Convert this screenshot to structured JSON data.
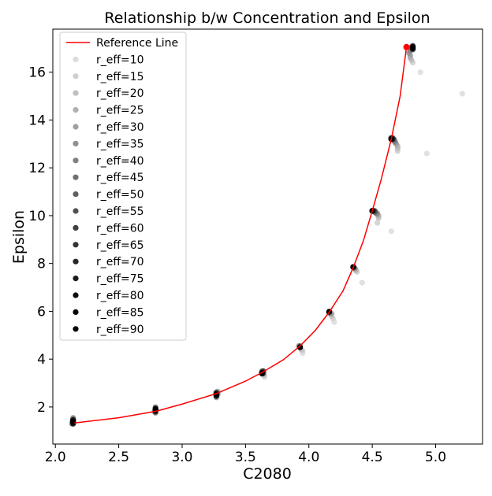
{
  "chart_data": {
    "type": "scatter",
    "title": "Relationship b/w Concentration and Epsilon",
    "xlabel": "C2080",
    "ylabel": "Epsilon",
    "xlim": [
      1.98,
      5.37
    ],
    "ylim": [
      0.45,
      17.8
    ],
    "xticks": [
      "2.0",
      "2.5",
      "3.0",
      "3.5",
      "4.0",
      "4.5",
      "5.0"
    ],
    "yticks": [
      "2",
      "4",
      "6",
      "8",
      "10",
      "12",
      "14",
      "16"
    ],
    "reference_line": {
      "name": "Reference Line",
      "color": "#ff0000",
      "x": [
        2.15,
        2.5,
        2.8,
        3.0,
        3.27,
        3.5,
        3.64,
        3.8,
        3.93,
        4.05,
        4.16,
        4.27,
        4.35,
        4.43,
        4.5,
        4.57,
        4.65,
        4.72,
        4.77
      ],
      "y": [
        1.33,
        1.55,
        1.83,
        2.12,
        2.56,
        3.08,
        3.47,
        3.98,
        4.55,
        5.2,
        5.96,
        6.86,
        7.83,
        8.95,
        10.2,
        11.5,
        13.2,
        15.0,
        17.05
      ]
    },
    "marker_point": {
      "x": 4.77,
      "y": 17.05,
      "color": "#ff0000"
    },
    "legend": {
      "position": "upper-left"
    },
    "series": [
      {
        "name": "r_eff=10",
        "color": "#dcdcdc",
        "x": [
          2.14,
          2.79,
          3.28,
          3.65,
          3.95,
          4.2,
          4.42,
          4.65,
          4.93,
          5.21,
          4.88
        ],
        "y": [
          1.45,
          1.85,
          2.45,
          3.25,
          4.25,
          5.55,
          7.2,
          9.35,
          12.6,
          15.1,
          16.0
        ]
      },
      {
        "name": "r_eff=15",
        "color": "#cfcfcf",
        "x": [
          2.14,
          2.79,
          3.28,
          3.65,
          3.95,
          4.19,
          4.38,
          4.54,
          4.7,
          4.82
        ],
        "y": [
          1.5,
          1.9,
          2.5,
          3.3,
          4.35,
          5.7,
          7.65,
          9.7,
          12.7,
          16.4
        ]
      },
      {
        "name": "r_eff=20",
        "color": "#c0c0c0",
        "x": [
          2.13,
          2.79,
          3.27,
          3.64,
          3.94,
          4.18,
          4.37,
          4.55,
          4.7,
          4.81
        ],
        "y": [
          1.4,
          1.95,
          2.6,
          3.35,
          4.4,
          5.8,
          7.7,
          9.9,
          12.8,
          16.5
        ]
      },
      {
        "name": "r_eff=25",
        "color": "#b0b0b0",
        "x": [
          2.14,
          2.78,
          3.27,
          3.64,
          3.93,
          4.18,
          4.37,
          4.55,
          4.7,
          4.8
        ],
        "y": [
          1.35,
          1.8,
          2.55,
          3.4,
          4.5,
          5.9,
          7.75,
          10.0,
          12.9,
          16.6
        ]
      },
      {
        "name": "r_eff=30",
        "color": "#a0a0a0",
        "x": [
          2.14,
          2.79,
          3.28,
          3.64,
          3.92,
          4.17,
          4.36,
          4.54,
          4.69,
          4.8
        ],
        "y": [
          1.55,
          2.0,
          2.65,
          3.5,
          4.55,
          5.95,
          7.8,
          10.05,
          13.0,
          16.7
        ]
      },
      {
        "name": "r_eff=35",
        "color": "#909090",
        "x": [
          2.13,
          2.79,
          3.27,
          3.64,
          3.93,
          4.17,
          4.36,
          4.54,
          4.68,
          4.79
        ],
        "y": [
          1.3,
          1.75,
          2.4,
          3.45,
          4.5,
          5.9,
          7.8,
          10.1,
          13.05,
          16.8
        ]
      },
      {
        "name": "r_eff=40",
        "color": "#808080",
        "x": [
          2.14,
          2.79,
          3.27,
          3.63,
          3.93,
          4.16,
          4.36,
          4.53,
          4.68,
          4.8
        ],
        "y": [
          1.45,
          1.9,
          2.6,
          3.5,
          4.5,
          5.95,
          7.8,
          10.1,
          13.1,
          16.9
        ]
      },
      {
        "name": "r_eff=45",
        "color": "#707070",
        "x": [
          2.14,
          2.79,
          3.28,
          3.64,
          3.93,
          4.16,
          4.35,
          4.52,
          4.67,
          4.81
        ],
        "y": [
          1.4,
          1.85,
          2.55,
          3.4,
          4.5,
          5.95,
          7.85,
          10.15,
          13.15,
          17.0
        ]
      },
      {
        "name": "r_eff=50",
        "color": "#606060",
        "x": [
          2.14,
          2.79,
          3.27,
          3.64,
          3.93,
          4.16,
          4.35,
          4.52,
          4.67,
          4.81
        ],
        "y": [
          1.5,
          1.95,
          2.5,
          3.45,
          4.55,
          5.98,
          7.85,
          10.15,
          13.2,
          17.05
        ]
      },
      {
        "name": "r_eff=55",
        "color": "#505050",
        "x": [
          2.14,
          2.79,
          3.27,
          3.64,
          3.93,
          4.16,
          4.35,
          4.52,
          4.66,
          4.82
        ],
        "y": [
          1.35,
          1.8,
          2.5,
          3.4,
          4.5,
          5.98,
          7.85,
          10.2,
          13.2,
          17.0
        ]
      },
      {
        "name": "r_eff=60",
        "color": "#404040",
        "x": [
          2.14,
          2.79,
          3.27,
          3.64,
          3.93,
          4.16,
          4.35,
          4.51,
          4.66,
          4.82
        ],
        "y": [
          1.45,
          1.9,
          2.55,
          3.45,
          4.5,
          5.98,
          7.85,
          10.2,
          13.25,
          17.05
        ]
      },
      {
        "name": "r_eff=65",
        "color": "#333333",
        "x": [
          2.14,
          2.79,
          3.27,
          3.64,
          3.93,
          4.16,
          4.35,
          4.51,
          4.66,
          4.82
        ],
        "y": [
          1.3,
          1.85,
          2.6,
          3.5,
          4.5,
          5.98,
          7.85,
          10.2,
          13.2,
          16.95
        ]
      },
      {
        "name": "r_eff=70",
        "color": "#262626",
        "x": [
          2.14,
          2.79,
          3.27,
          3.63,
          3.93,
          4.16,
          4.35,
          4.5,
          4.66,
          4.82
        ],
        "y": [
          1.4,
          1.8,
          2.45,
          3.4,
          4.5,
          5.98,
          7.85,
          10.2,
          13.2,
          17.1
        ]
      },
      {
        "name": "r_eff=75",
        "color": "#1a1a1a",
        "x": [
          2.14,
          2.79,
          3.27,
          3.63,
          3.93,
          4.16,
          4.35,
          4.5,
          4.65,
          4.82
        ],
        "y": [
          1.3,
          1.95,
          2.5,
          3.4,
          4.5,
          5.98,
          7.85,
          10.2,
          13.25,
          17.05
        ]
      },
      {
        "name": "r_eff=80",
        "color": "#0d0d0d",
        "x": [
          2.14,
          2.79,
          3.27,
          3.63,
          3.93,
          4.16,
          4.35,
          4.5,
          4.65,
          4.82
        ],
        "y": [
          1.45,
          1.9,
          2.55,
          3.45,
          4.5,
          5.98,
          7.85,
          10.2,
          13.2,
          17.0
        ]
      },
      {
        "name": "r_eff=85",
        "color": "#050505",
        "x": [
          2.14,
          2.79,
          3.27,
          3.63,
          3.93,
          4.16,
          4.35,
          4.5,
          4.65,
          4.82
        ],
        "y": [
          1.35,
          1.85,
          2.5,
          3.4,
          4.5,
          5.98,
          7.85,
          10.2,
          13.2,
          17.05
        ]
      },
      {
        "name": "r_eff=90",
        "color": "#000000",
        "x": [
          2.14,
          2.79,
          3.27,
          3.63,
          3.93,
          4.16,
          4.35,
          4.5,
          4.65,
          4.82
        ],
        "y": [
          1.4,
          1.9,
          2.5,
          3.4,
          4.5,
          5.98,
          7.85,
          10.2,
          13.2,
          17.0
        ]
      }
    ]
  }
}
